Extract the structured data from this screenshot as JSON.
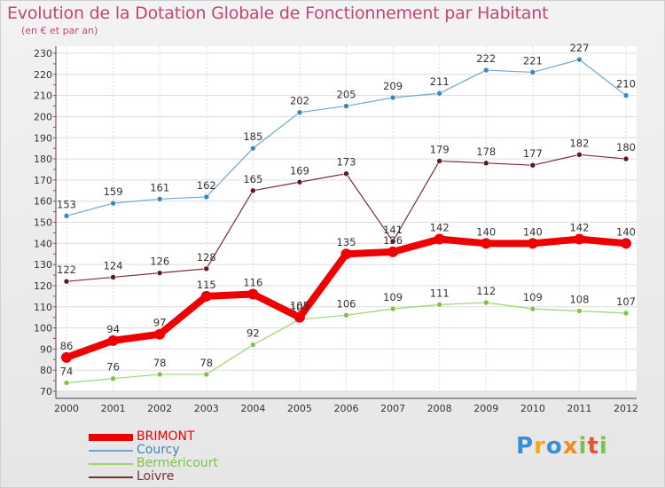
{
  "title": "Evolution de la Dotation Globale de Fonctionnement par Habitant",
  "subtitle": "(en € et par an)",
  "logo": {
    "text": "Proxiti",
    "letters": [
      "P",
      "r",
      "o",
      "x",
      "i",
      "t",
      "i"
    ],
    "colors": [
      "#3b8fd1",
      "#f5a623",
      "#3b8fd1",
      "#f28a1e",
      "#7cc24b",
      "#e8522e",
      "#7cc24b"
    ]
  },
  "chart_data": {
    "type": "line",
    "title": "Evolution de la Dotation Globale de Fonctionnement par Habitant",
    "ylabel": "(en € et par an)",
    "xlabel": "",
    "categories": [
      "2000",
      "2001",
      "2002",
      "2003",
      "2004",
      "2005",
      "2006",
      "2007",
      "2008",
      "2009",
      "2010",
      "2011",
      "2012"
    ],
    "ylim": [
      70,
      230
    ],
    "yticks": [
      "70",
      "80",
      "90",
      "100",
      "110",
      "120",
      "130",
      "140",
      "150",
      "160",
      "170",
      "180",
      "190",
      "200",
      "210",
      "220",
      "230"
    ],
    "grid": true,
    "legend_position": "bottom-left",
    "series": [
      {
        "name": "Courcy",
        "color": "#6ea6d4",
        "point_color": "#3a86c4",
        "values": [
          153,
          159,
          161,
          162,
          185,
          202,
          205,
          209,
          211,
          222,
          221,
          227,
          210
        ]
      },
      {
        "name": "Loivre",
        "color": "#7a2f33",
        "point_color": "#5a1a1f",
        "values": [
          122,
          124,
          126,
          128,
          165,
          169,
          173,
          141,
          179,
          178,
          177,
          182,
          180
        ]
      },
      {
        "name": "Berméricourt",
        "color": "#9fd46e",
        "point_color": "#7cc24b",
        "values": [
          74,
          76,
          78,
          78,
          92,
          104,
          106,
          109,
          111,
          112,
          109,
          108,
          107
        ]
      },
      {
        "name": "BRIMONT",
        "color": "#ee0000",
        "point_color": "#ee0000",
        "values": [
          86,
          94,
          97,
          115,
          116,
          105,
          135,
          136,
          142,
          140,
          140,
          142,
          140
        ]
      }
    ]
  }
}
